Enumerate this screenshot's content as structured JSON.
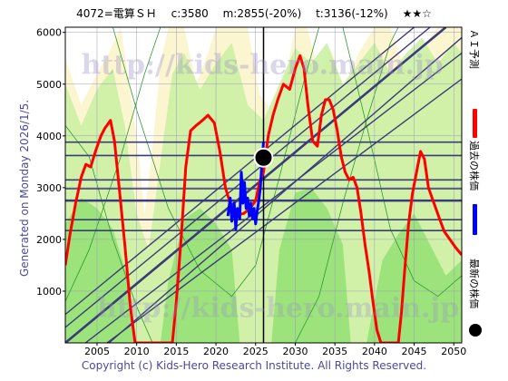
{
  "header": {
    "code": "4072=電算ＳＨ",
    "current": "c:3580",
    "min": "m:2855(-20%)",
    "target": "t:3136(-12%)",
    "rating": "★★☆"
  },
  "generated": "Generated on Monday 2026/1/5.",
  "footer": "Copyright (c) Kids-Hero Research Institute. All Rights Reserved.",
  "legend": [
    {
      "label": "ＡＩ予測",
      "color": "#ff0000"
    },
    {
      "label": "過去の株価",
      "color": "#0000ff"
    },
    {
      "label": "最新の株価",
      "color": "#000000"
    }
  ],
  "watermark": "http://kids-hero.main.jp",
  "chart_data": {
    "type": "line",
    "xlim": [
      2001,
      2051
    ],
    "ylim": [
      0,
      6100
    ],
    "x_ticks": [
      2005,
      2010,
      2015,
      2020,
      2025,
      2030,
      2035,
      2040,
      2045,
      2050
    ],
    "y_ticks": [
      1000,
      2000,
      3000,
      4000,
      5000,
      6000
    ],
    "horizontal_levels": [
      3880,
      3620,
      3150,
      2980,
      2750,
      2380,
      2170
    ],
    "latest": {
      "x": 2026.0,
      "y": 3580
    },
    "colors": {
      "prediction": "#ff0000",
      "past": "#0000ff",
      "latest": "#000000",
      "levels": "#3b3b7a",
      "trend": "#3b3b7a"
    },
    "series": [
      {
        "name": "ＡＩ予測",
        "points": [
          [
            2001,
            1500
          ],
          [
            2001.6,
            2100
          ],
          [
            2002.3,
            2700
          ],
          [
            2003,
            3200
          ],
          [
            2003.6,
            3450
          ],
          [
            2004.2,
            3400
          ],
          [
            2004.8,
            3700
          ],
          [
            2005.5,
            4000
          ],
          [
            2006,
            4150
          ],
          [
            2006.7,
            4300
          ],
          [
            2007.2,
            3900
          ],
          [
            2007.8,
            3000
          ],
          [
            2008.5,
            1900
          ],
          [
            2009.2,
            700
          ],
          [
            2009.8,
            0
          ],
          [
            2014.5,
            0
          ],
          [
            2015,
            800
          ],
          [
            2015.6,
            2000
          ],
          [
            2016.2,
            3400
          ],
          [
            2016.8,
            4100
          ],
          [
            2017.5,
            4200
          ],
          [
            2018.3,
            4300
          ],
          [
            2019,
            4400
          ],
          [
            2019.8,
            4250
          ],
          [
            2020.5,
            3700
          ],
          [
            2021.2,
            3000
          ],
          [
            2022,
            2600
          ],
          [
            2022.8,
            2480
          ],
          [
            2023.5,
            2500
          ],
          [
            2024.3,
            2600
          ],
          [
            2025,
            2750
          ],
          [
            2025.5,
            3100
          ],
          [
            2026,
            3300
          ],
          [
            2026.6,
            4000
          ],
          [
            2027.2,
            4400
          ],
          [
            2027.8,
            4700
          ],
          [
            2028.5,
            5000
          ],
          [
            2029.3,
            4900
          ],
          [
            2030,
            5300
          ],
          [
            2030.6,
            5550
          ],
          [
            2031.1,
            5300
          ],
          [
            2031.6,
            4600
          ],
          [
            2032.2,
            3900
          ],
          [
            2032.8,
            3800
          ],
          [
            2033.3,
            4400
          ],
          [
            2033.8,
            4700
          ],
          [
            2034.3,
            4700
          ],
          [
            2034.8,
            4500
          ],
          [
            2035.3,
            4100
          ],
          [
            2035.8,
            3600
          ],
          [
            2036.3,
            3300
          ],
          [
            2036.8,
            3150
          ],
          [
            2037.3,
            3200
          ],
          [
            2037.8,
            3000
          ],
          [
            2038.3,
            2500
          ],
          [
            2038.8,
            1900
          ],
          [
            2039.3,
            1400
          ],
          [
            2039.8,
            800
          ],
          [
            2040.3,
            250
          ],
          [
            2040.8,
            0
          ],
          [
            2043,
            0
          ],
          [
            2043.4,
            600
          ],
          [
            2043.8,
            1400
          ],
          [
            2044.3,
            2300
          ],
          [
            2044.8,
            2900
          ],
          [
            2045.3,
            3300
          ],
          [
            2045.8,
            3700
          ],
          [
            2046.3,
            3550
          ],
          [
            2046.8,
            3000
          ],
          [
            2047.5,
            2700
          ],
          [
            2048.2,
            2400
          ],
          [
            2048.8,
            2150
          ],
          [
            2049.5,
            2000
          ],
          [
            2050.2,
            1850
          ],
          [
            2051,
            1700
          ]
        ]
      },
      {
        "name": "過去の株価",
        "points": [
          [
            2021.5,
            2450
          ],
          [
            2021.8,
            2800
          ],
          [
            2022,
            2350
          ],
          [
            2022.3,
            2700
          ],
          [
            2022.5,
            2200
          ],
          [
            2022.7,
            2600
          ],
          [
            2023,
            2400
          ],
          [
            2023.2,
            3300
          ],
          [
            2023.4,
            2700
          ],
          [
            2023.6,
            3100
          ],
          [
            2023.8,
            2600
          ],
          [
            2024,
            2800
          ],
          [
            2024.2,
            2450
          ],
          [
            2024.4,
            2700
          ],
          [
            2024.6,
            2400
          ],
          [
            2024.8,
            2600
          ],
          [
            2025,
            2300
          ],
          [
            2025.2,
            2550
          ],
          [
            2025.4,
            2750
          ],
          [
            2025.6,
            3000
          ],
          [
            2025.8,
            3500
          ],
          [
            2026,
            3880
          ]
        ]
      }
    ]
  }
}
